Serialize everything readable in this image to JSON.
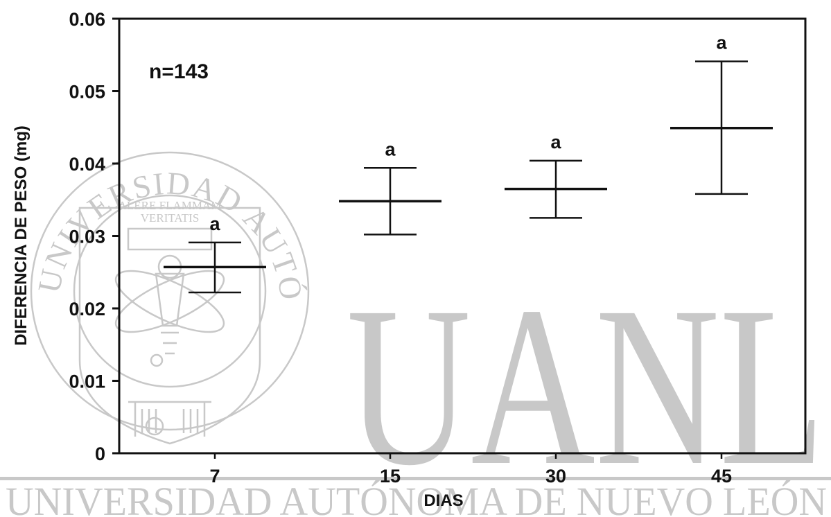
{
  "chart_data": {
    "type": "errorbar",
    "xlabel": "DIAS",
    "ylabel": "DIFERENCIA DE PESO (mg)",
    "annotation": "n=143",
    "categories": [
      "7",
      "15",
      "30",
      "45"
    ],
    "ylim": [
      0,
      0.06
    ],
    "yticks": [
      "0",
      "0.01",
      "0.02",
      "0.03",
      "0.04",
      "0.05",
      "0.06"
    ],
    "points": [
      {
        "x": "7",
        "mean": 0.0257,
        "lower": 0.0222,
        "upper": 0.0291,
        "label": "a"
      },
      {
        "x": "15",
        "mean": 0.0348,
        "lower": 0.0302,
        "upper": 0.0394,
        "label": "a"
      },
      {
        "x": "30",
        "mean": 0.0365,
        "lower": 0.0325,
        "upper": 0.0404,
        "label": "a"
      },
      {
        "x": "45",
        "mean": 0.0449,
        "lower": 0.0358,
        "upper": 0.0541,
        "label": "a"
      }
    ],
    "grid": false
  },
  "watermark": {
    "big_text": "UANL",
    "bottom_text": "UNIVERSIDAD AUTÓNOMA DE NUEVO LEÓN",
    "seal_text": "UNIVERSIDAD AUTÓNOMA DE NUEVO LEÓN",
    "motto_line1": "ALERE FLAMMAM",
    "motto_line2": "VERITATIS",
    "color": "#c8c8c8"
  },
  "colors": {
    "ink": "#111111",
    "background": "#ffffff"
  }
}
